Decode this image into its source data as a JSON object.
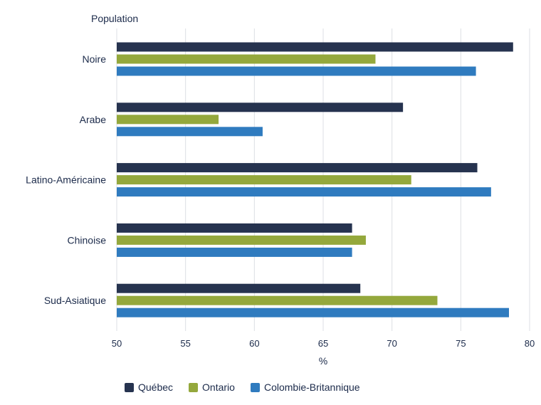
{
  "chart_data": {
    "type": "bar",
    "orientation": "horizontal",
    "y_title": "Population",
    "xlabel": "%",
    "xlim": [
      50,
      80
    ],
    "xticks": [
      50,
      55,
      60,
      65,
      70,
      75,
      80
    ],
    "grid": true,
    "legend_position": "bottom",
    "categories": [
      "Noire",
      "Arabe",
      "Latino-Américaine",
      "Chinoise",
      "Sud-Asiatique"
    ],
    "series": [
      {
        "name": "Québec",
        "color": "#26334f",
        "values": [
          78.8,
          70.8,
          76.2,
          67.1,
          67.7
        ]
      },
      {
        "name": "Ontario",
        "color": "#94a83c",
        "values": [
          68.8,
          57.4,
          71.4,
          68.1,
          73.3
        ]
      },
      {
        "name": "Colombie-Britannique",
        "color": "#2f7bbf",
        "values": [
          76.1,
          60.6,
          77.2,
          67.1,
          78.5
        ]
      }
    ]
  }
}
